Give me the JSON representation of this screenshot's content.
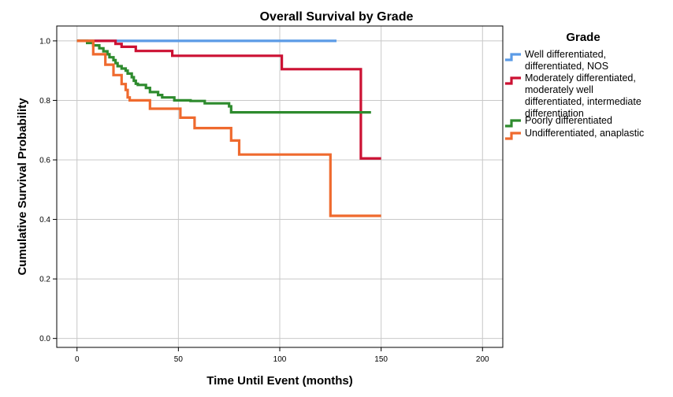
{
  "chart_data": {
    "type": "line",
    "title": "Overall Survival by Grade",
    "xlabel": "Time Until Event (months)",
    "ylabel": "Cumulative Survival Probability",
    "xlim": [
      -10,
      210
    ],
    "ylim": [
      -0.03,
      1.05
    ],
    "xticks": [
      0,
      50,
      100,
      150,
      200
    ],
    "xtick_labels": [
      "0",
      "50",
      "100",
      "150",
      "200"
    ],
    "yticks": [
      0.0,
      0.2,
      0.4,
      0.6,
      0.8,
      1.0
    ],
    "ytick_labels": [
      "0.0",
      "0.2",
      "0.4",
      "0.6",
      "0.8",
      "1.0"
    ],
    "grid": true,
    "step": true,
    "legend": {
      "title": "Grade",
      "position": "right",
      "entries": [
        {
          "series": 0,
          "lines": [
            "Well differentiated,",
            "differentiated, NOS"
          ]
        },
        {
          "series": 1,
          "lines": [
            "Moderately differentiated,",
            "moderately well",
            "differentiated, intermediate",
            "differentiation"
          ]
        },
        {
          "series": 2,
          "lines": [
            "Poorly differentiated"
          ]
        },
        {
          "series": 3,
          "lines": [
            "Undifferentiated, anaplastic"
          ]
        }
      ]
    },
    "series": [
      {
        "name": "Well differentiated, differentiated, NOS",
        "color": "#5b9be6",
        "x": [
          0,
          128
        ],
        "y": [
          1.0,
          1.0
        ]
      },
      {
        "name": "Moderately differentiated, moderately well differentiated, intermediate differentiation",
        "color": "#cc1133",
        "x": [
          0,
          19,
          22,
          29,
          47,
          101,
          140,
          150
        ],
        "y": [
          1.0,
          0.99,
          0.98,
          0.966,
          0.95,
          0.905,
          0.605,
          0.605
        ]
      },
      {
        "name": "Poorly differentiated",
        "color": "#2e8b2e",
        "x": [
          0,
          5,
          8,
          11,
          13,
          15,
          16,
          18,
          19,
          20,
          22,
          24,
          25,
          27,
          28,
          29,
          30,
          34,
          36,
          40,
          42,
          48,
          56,
          63,
          75,
          76,
          145
        ],
        "y": [
          1.0,
          0.993,
          0.985,
          0.975,
          0.965,
          0.955,
          0.945,
          0.935,
          0.925,
          0.915,
          0.907,
          0.9,
          0.89,
          0.878,
          0.866,
          0.856,
          0.852,
          0.842,
          0.828,
          0.818,
          0.81,
          0.8,
          0.798,
          0.79,
          0.78,
          0.76,
          0.76
        ]
      },
      {
        "name": "Undifferentiated, anaplastic",
        "color": "#ef6a2e",
        "x": [
          0,
          8,
          14,
          18,
          22,
          24,
          25,
          26,
          36,
          51,
          58,
          76,
          80,
          125,
          150
        ],
        "y": [
          1.0,
          0.955,
          0.92,
          0.885,
          0.855,
          0.835,
          0.81,
          0.8,
          0.772,
          0.742,
          0.707,
          0.665,
          0.618,
          0.412,
          0.412
        ]
      }
    ]
  }
}
